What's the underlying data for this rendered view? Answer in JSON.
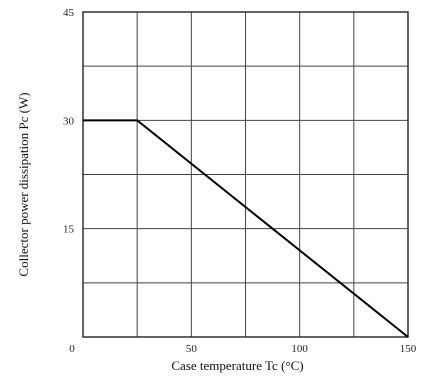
{
  "chart_data": {
    "type": "line",
    "xlabel": "Case temperature  Tc (°C)",
    "ylabel": "Collector power dissipation  Pc (W)",
    "xlim": [
      0,
      150
    ],
    "ylim": [
      0,
      45
    ],
    "x_ticks": [
      0,
      50,
      100,
      150
    ],
    "y_ticks": [
      15,
      30,
      45
    ],
    "x_gridlines": [
      0,
      25,
      50,
      75,
      100,
      125,
      150
    ],
    "y_gridlines": [
      0,
      7.5,
      15,
      22.5,
      30,
      37.5,
      45
    ],
    "grid": true,
    "series": [
      {
        "x": [
          0,
          25,
          150
        ],
        "y": [
          30,
          30,
          0
        ]
      }
    ]
  }
}
